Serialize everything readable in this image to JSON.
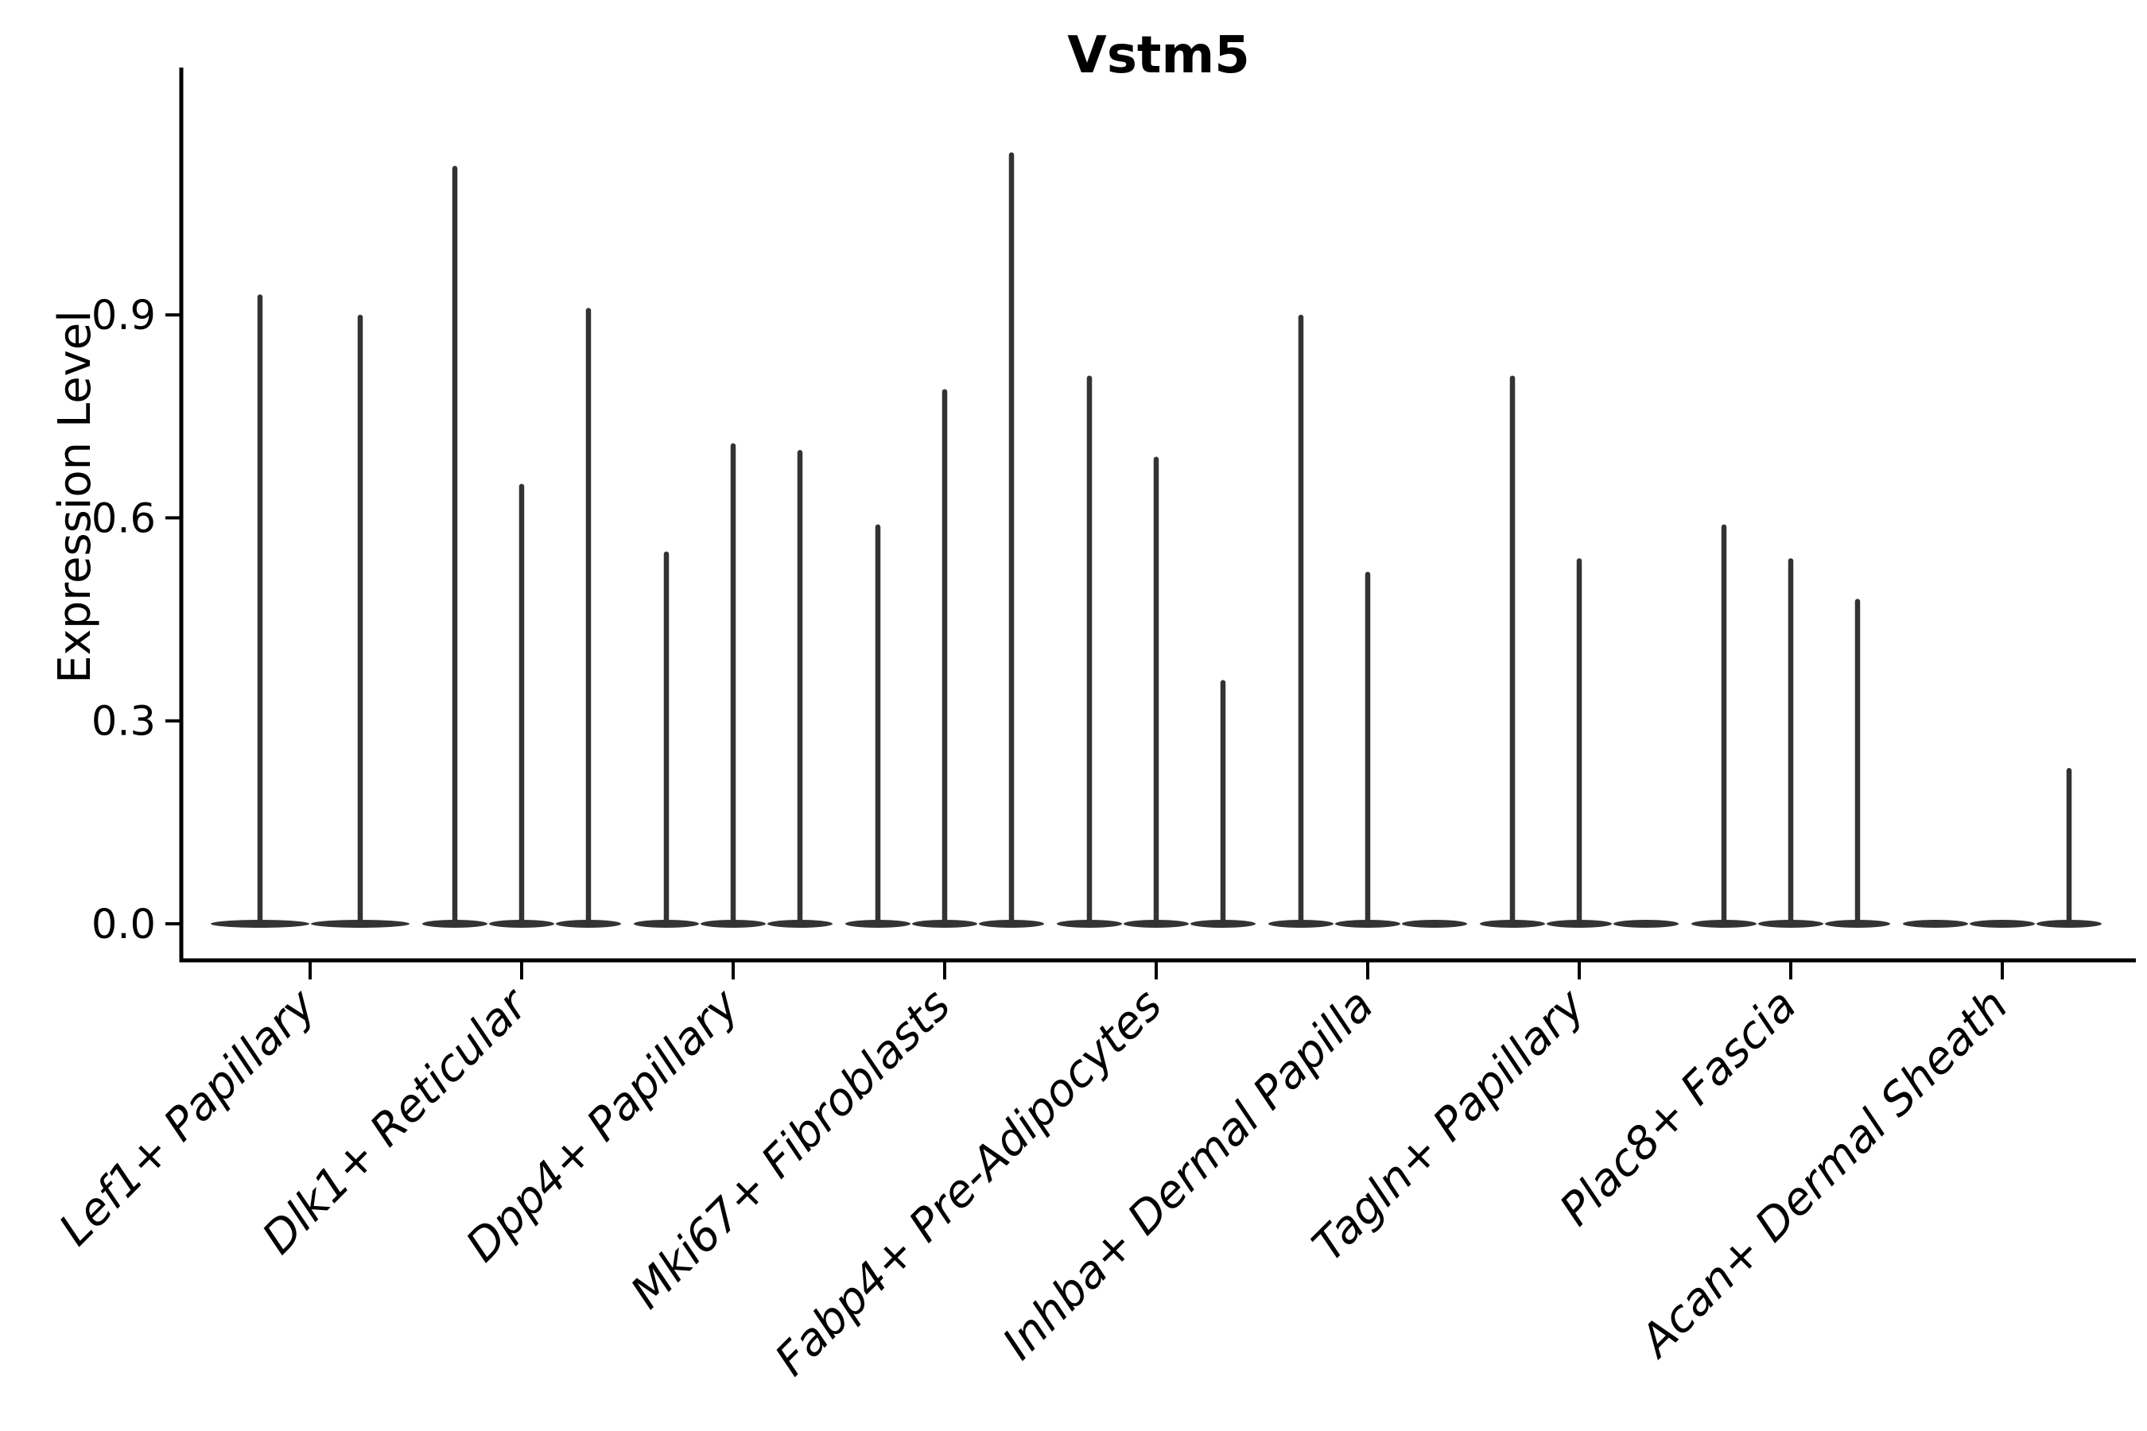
{
  "chart_data": {
    "type": "violin",
    "title": "Vstm5",
    "ylabel": "Expression Level",
    "xlabel": "",
    "ytick_labels": [
      "0.0",
      "0.3",
      "0.6",
      "0.9"
    ],
    "ytick_values": [
      0.0,
      0.3,
      0.6,
      0.9
    ],
    "ylim": [
      -0.056,
      1.266
    ],
    "grid": false,
    "legend": "none",
    "violin_color": "#333333",
    "axis_color": "#000000",
    "categories": [
      "Lef1+ Papillary",
      "Dlk1+ Reticular",
      "Dpp4+ Papillary",
      "Mki67+ Fibroblasts",
      "Fabp4+ Pre-Adipocytes",
      "Inhba+ Dermal Papilla",
      "Tagln+ Papillary",
      "Plac8+ Fascia",
      "Acan+ Dermal Sheath"
    ],
    "series": [
      {
        "category": "Lef1+ Papillary",
        "violin_maxima": [
          0.93,
          0.9
        ]
      },
      {
        "category": "Dlk1+ Reticular",
        "violin_maxima": [
          1.12,
          0.65,
          0.91
        ]
      },
      {
        "category": "Dpp4+ Papillary",
        "violin_maxima": [
          0.55,
          0.71,
          0.7
        ]
      },
      {
        "category": "Mki67+ Fibroblasts",
        "violin_maxima": [
          0.59,
          0.79,
          1.14
        ]
      },
      {
        "category": "Fabp4+ Pre-Adipocytes",
        "violin_maxima": [
          0.81,
          0.69,
          0.36
        ]
      },
      {
        "category": "Inhba+ Dermal Papilla",
        "violin_maxima": [
          0.9,
          0.52,
          0.0
        ]
      },
      {
        "category": "Tagln+ Papillary",
        "violin_maxima": [
          0.81,
          0.54,
          0.0
        ]
      },
      {
        "category": "Plac8+ Fascia",
        "violin_maxima": [
          0.59,
          0.54,
          0.48
        ]
      },
      {
        "category": "Acan+ Dermal Sheath",
        "violin_maxima": [
          0.0,
          0.0,
          0.23
        ]
      }
    ]
  }
}
